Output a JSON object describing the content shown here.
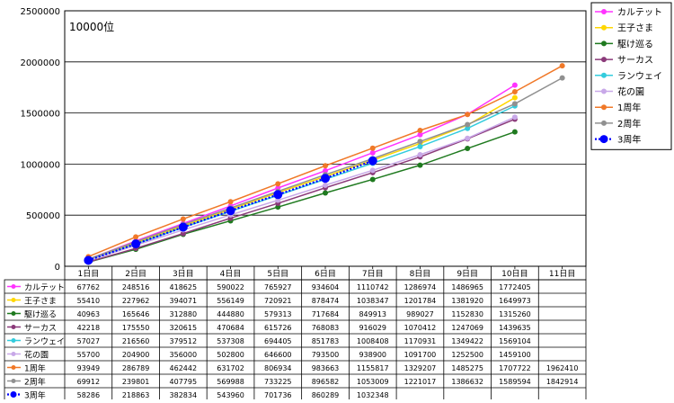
{
  "chart_data": {
    "type": "line",
    "annotation": "10000位",
    "categories": [
      "1日目",
      "2日目",
      "3日目",
      "4日目",
      "5日目",
      "6日目",
      "7日目",
      "8日目",
      "9日目",
      "10日目",
      "11日目"
    ],
    "ylim": [
      0,
      2500000
    ],
    "yticks": [
      "0",
      "500000",
      "1000000",
      "1500000",
      "2000000",
      "2500000"
    ],
    "grid": true,
    "legend_position": "right",
    "series": [
      {
        "name": "カルテット",
        "color": "#ff33ff",
        "marker": "circle",
        "values": [
          67762,
          248516,
          418625,
          590022,
          765927,
          934604,
          1110742,
          1286974,
          1486965,
          1772405,
          null
        ]
      },
      {
        "name": "王子さま",
        "color": "#ffd700",
        "marker": "circle",
        "values": [
          55410,
          227962,
          394071,
          556149,
          720921,
          878474,
          1038347,
          1201784,
          1381920,
          1649973,
          null
        ]
      },
      {
        "name": "駆け巡る",
        "color": "#1f7a1f",
        "marker": "circle",
        "values": [
          40963,
          165646,
          312880,
          444880,
          579313,
          717684,
          849913,
          989027,
          1152830,
          1315260,
          null
        ]
      },
      {
        "name": "サーカス",
        "color": "#8b3a7a",
        "marker": "circle",
        "values": [
          42218,
          175550,
          320615,
          470684,
          615726,
          768083,
          916029,
          1070412,
          1247069,
          1439635,
          null
        ]
      },
      {
        "name": "ランウェイ",
        "color": "#33ccdd",
        "marker": "circle",
        "values": [
          57027,
          216560,
          379512,
          537308,
          694405,
          851783,
          1008408,
          1170931,
          1349422,
          1569104,
          null
        ]
      },
      {
        "name": "花の園",
        "color": "#c8a8e8",
        "marker": "circle",
        "values": [
          55700,
          204900,
          356000,
          502800,
          646600,
          793500,
          938900,
          1091700,
          1252500,
          1459100,
          null
        ]
      },
      {
        "name": "1周年",
        "color": "#f07828",
        "marker": "circle",
        "values": [
          93949,
          286789,
          462442,
          631702,
          806934,
          983663,
          1155817,
          1329207,
          1485275,
          1707722,
          1962410
        ]
      },
      {
        "name": "2周年",
        "color": "#909090",
        "marker": "circle",
        "values": [
          69912,
          239801,
          407795,
          569988,
          733225,
          896582,
          1053009,
          1221017,
          1386632,
          1589594,
          1842914
        ]
      },
      {
        "name": "3周年",
        "color": "#0000ff",
        "marker": "big-circle",
        "dotted": true,
        "values": [
          58286,
          218863,
          382834,
          543960,
          701736,
          860289,
          1032348,
          null,
          null,
          null,
          null
        ]
      }
    ]
  }
}
